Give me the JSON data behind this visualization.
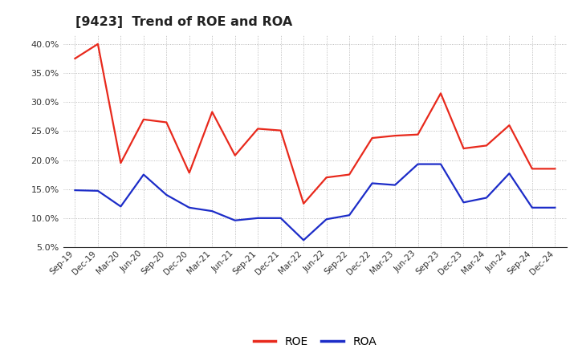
{
  "title": "[9423]  Trend of ROE and ROA",
  "x_labels": [
    "Sep-19",
    "Dec-19",
    "Mar-20",
    "Jun-20",
    "Sep-20",
    "Dec-20",
    "Mar-21",
    "Jun-21",
    "Sep-21",
    "Dec-21",
    "Mar-22",
    "Jun-22",
    "Sep-22",
    "Dec-22",
    "Mar-23",
    "Jun-23",
    "Sep-23",
    "Dec-23",
    "Mar-24",
    "Jun-24",
    "Sep-24",
    "Dec-24"
  ],
  "roe": [
    0.375,
    0.4,
    0.195,
    0.27,
    0.265,
    0.178,
    0.283,
    0.208,
    0.254,
    0.251,
    0.125,
    0.17,
    0.175,
    0.238,
    0.242,
    0.244,
    0.315,
    0.22,
    0.225,
    0.26,
    0.185,
    0.185
  ],
  "roa": [
    0.148,
    0.147,
    0.12,
    0.175,
    0.14,
    0.118,
    0.112,
    0.096,
    0.1,
    0.1,
    0.062,
    0.098,
    0.105,
    0.16,
    0.157,
    0.193,
    0.193,
    0.127,
    0.135,
    0.177,
    0.118,
    0.118
  ],
  "roe_color": "#e8291c",
  "roa_color": "#1c2cc8",
  "ylim_min": 0.05,
  "ylim_max": 0.415,
  "yticks": [
    0.05,
    0.1,
    0.15,
    0.2,
    0.25,
    0.3,
    0.35,
    0.4
  ],
  "grid_color": "#aaaaaa",
  "background_color": "#ffffff",
  "plot_bg_color": "#ffffff",
  "legend_labels": [
    "ROE",
    "ROA"
  ],
  "line_width": 1.6
}
